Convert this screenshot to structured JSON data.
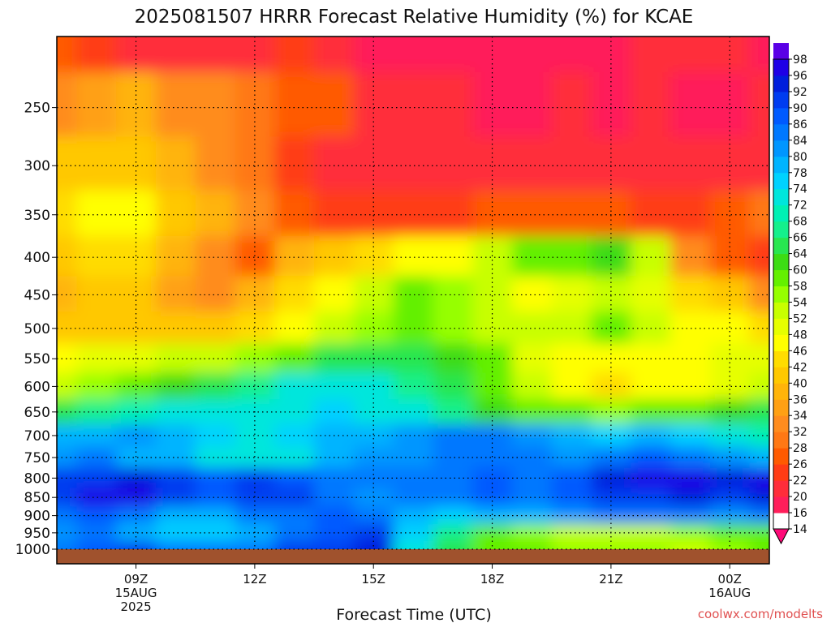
{
  "chart_data": {
    "type": "heatmap",
    "title": "2025081507 HRRR Forecast Relative Humidity (%) for KCAE",
    "xlabel": "Forecast Time (UTC)",
    "ylabel": "",
    "credit": "coolwx.com/modelts",
    "x_ticks": [
      {
        "hour": 9,
        "lines": [
          "09Z",
          "15AUG",
          "2025"
        ]
      },
      {
        "hour": 12,
        "lines": [
          "12Z"
        ]
      },
      {
        "hour": 15,
        "lines": [
          "15Z"
        ]
      },
      {
        "hour": 18,
        "lines": [
          "18Z"
        ]
      },
      {
        "hour": 21,
        "lines": [
          "21Z"
        ]
      },
      {
        "hour": 24,
        "lines": [
          "00Z",
          "16AUG"
        ]
      }
    ],
    "xlim_hours": [
      7,
      25
    ],
    "y_ticks": [
      250,
      300,
      350,
      400,
      450,
      500,
      550,
      600,
      650,
      700,
      750,
      800,
      850,
      900,
      950,
      1000
    ],
    "ylim_hpa": [
      200,
      1000
    ],
    "y_scale": "log-pressure",
    "grid": true,
    "colorbar": {
      "levels": [
        14,
        16,
        20,
        22,
        26,
        28,
        32,
        34,
        36,
        40,
        42,
        46,
        48,
        52,
        54,
        58,
        60,
        64,
        66,
        68,
        72,
        74,
        78,
        80,
        84,
        86,
        90,
        92,
        96,
        98
      ],
      "colors": [
        "#ff0a78",
        "#ff1e5a",
        "#ff2d3a",
        "#ff3c14",
        "#ff5a00",
        "#ff7814",
        "#ff8c1e",
        "#ffa014",
        "#ffb40a",
        "#ffc800",
        "#ffdc00",
        "#ffff00",
        "#e6ff00",
        "#c8ff00",
        "#96ff00",
        "#64f000",
        "#3cdc14",
        "#28e650",
        "#14f08c",
        "#00f0b4",
        "#00e6dc",
        "#00d2ff",
        "#00b4ff",
        "#0096ff",
        "#0078ff",
        "#005aff",
        "#003cf0",
        "#001edc",
        "#1e00e6",
        "#5a00e6",
        "#9600f0"
      ]
    },
    "series": [
      {
        "hours": [
          7,
          8,
          9,
          10,
          11,
          12,
          13,
          14,
          15,
          16,
          17,
          18,
          19,
          20,
          21,
          22,
          23,
          24,
          25
        ]
      },
      {
        "pressure": 200,
        "rh": [
          22,
          20,
          18,
          16,
          16,
          18,
          20,
          16,
          14,
          14,
          14,
          14,
          14,
          14,
          14,
          16,
          16,
          18,
          14
        ]
      },
      {
        "pressure": 250,
        "rh": [
          30,
          32,
          34,
          30,
          28,
          26,
          24,
          22,
          18,
          16,
          16,
          14,
          14,
          16,
          14,
          16,
          14,
          14,
          16
        ]
      },
      {
        "pressure": 300,
        "rh": [
          36,
          38,
          36,
          34,
          30,
          26,
          20,
          18,
          18,
          16,
          16,
          16,
          18,
          18,
          16,
          16,
          16,
          16,
          18
        ]
      },
      {
        "pressure": 350,
        "rh": [
          40,
          42,
          42,
          38,
          34,
          30,
          22,
          20,
          20,
          20,
          20,
          22,
          22,
          22,
          22,
          20,
          20,
          22,
          26
        ]
      },
      {
        "pressure": 400,
        "rh": [
          38,
          40,
          40,
          34,
          28,
          24,
          34,
          38,
          40,
          42,
          44,
          50,
          54,
          56,
          58,
          50,
          30,
          22,
          20
        ]
      },
      {
        "pressure": 450,
        "rh": [
          34,
          36,
          36,
          32,
          30,
          34,
          40,
          44,
          48,
          54,
          52,
          48,
          44,
          46,
          48,
          46,
          40,
          36,
          30
        ]
      },
      {
        "pressure": 500,
        "rh": [
          36,
          38,
          38,
          36,
          36,
          40,
          44,
          48,
          52,
          54,
          52,
          50,
          48,
          50,
          54,
          48,
          42,
          42,
          40
        ]
      },
      {
        "pressure": 550,
        "rh": [
          44,
          46,
          46,
          48,
          48,
          52,
          56,
          60,
          62,
          60,
          58,
          54,
          46,
          44,
          42,
          42,
          44,
          46,
          46
        ]
      },
      {
        "pressure": 600,
        "rh": [
          50,
          52,
          54,
          58,
          60,
          64,
          68,
          70,
          68,
          64,
          60,
          56,
          48,
          44,
          40,
          42,
          44,
          46,
          48
        ]
      },
      {
        "pressure": 650,
        "rh": [
          60,
          64,
          66,
          68,
          68,
          70,
          70,
          72,
          70,
          68,
          64,
          58,
          56,
          54,
          52,
          54,
          56,
          58,
          62
        ]
      },
      {
        "pressure": 700,
        "rh": [
          74,
          76,
          78,
          74,
          72,
          70,
          72,
          74,
          76,
          78,
          80,
          80,
          78,
          74,
          72,
          74,
          72,
          70,
          66
        ]
      },
      {
        "pressure": 750,
        "rh": [
          78,
          80,
          76,
          74,
          70,
          68,
          70,
          74,
          78,
          78,
          80,
          82,
          80,
          78,
          80,
          84,
          82,
          78,
          76
        ]
      },
      {
        "pressure": 800,
        "rh": [
          86,
          88,
          90,
          86,
          84,
          86,
          84,
          82,
          80,
          82,
          82,
          84,
          82,
          84,
          90,
          92,
          92,
          90,
          94
        ]
      },
      {
        "pressure": 850,
        "rh": [
          88,
          92,
          92,
          88,
          84,
          88,
          86,
          82,
          78,
          80,
          82,
          84,
          82,
          84,
          86,
          88,
          90,
          88,
          90
        ]
      },
      {
        "pressure": 900,
        "rh": [
          80,
          84,
          82,
          76,
          74,
          80,
          82,
          84,
          80,
          76,
          72,
          74,
          76,
          78,
          80,
          82,
          80,
          78,
          80
        ]
      },
      {
        "pressure": 950,
        "rh": [
          78,
          80,
          76,
          72,
          72,
          76,
          80,
          84,
          86,
          72,
          64,
          56,
          52,
          50,
          50,
          50,
          52,
          54,
          56
        ]
      },
      {
        "pressure": 1000,
        "rh": [
          80,
          84,
          86,
          82,
          80,
          82,
          86,
          88,
          90,
          70,
          62,
          56,
          54,
          52,
          52,
          52,
          50,
          52,
          54
        ]
      }
    ]
  }
}
